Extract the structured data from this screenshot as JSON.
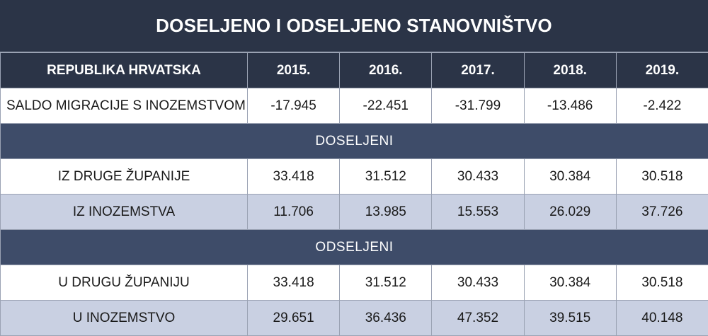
{
  "chart_data": {
    "type": "table",
    "title": "DOSELJENO I ODSELJENO STANOVNIŠTVO",
    "header": {
      "label": "REPUBLIKA HRVATSKA",
      "years": [
        "2015.",
        "2016.",
        "2017.",
        "2018.",
        "2019."
      ]
    },
    "saldo": {
      "label": "SALDO MIGRACIJE S INOZEMSTVOM",
      "values": [
        "-17.945",
        "-22.451",
        "-31.799",
        "-13.486",
        "-2.422"
      ]
    },
    "doseljeni": {
      "section_label": "DOSELJENI",
      "rows": [
        {
          "label": "IZ DRUGE ŽUPANIJE",
          "values": [
            "33.418",
            "31.512",
            "30.433",
            "30.384",
            "30.518"
          ]
        },
        {
          "label": "IZ INOZEMSTVA",
          "values": [
            "11.706",
            "13.985",
            "15.553",
            "26.029",
            "37.726"
          ]
        }
      ]
    },
    "odseljeni": {
      "section_label": "ODSELJENI",
      "rows": [
        {
          "label": "U DRUGU ŽUPANIJU",
          "values": [
            "33.418",
            "31.512",
            "30.433",
            "30.384",
            "30.518"
          ]
        },
        {
          "label": "U INOZEMSTVO",
          "values": [
            "29.651",
            "36.436",
            "47.352",
            "39.515",
            "40.148"
          ]
        }
      ]
    }
  },
  "colors": {
    "header_dark": "#2b3447",
    "section_blue": "#3e4c69",
    "row_light_blue": "#c9d0e2",
    "border": "#9aa2b3"
  }
}
